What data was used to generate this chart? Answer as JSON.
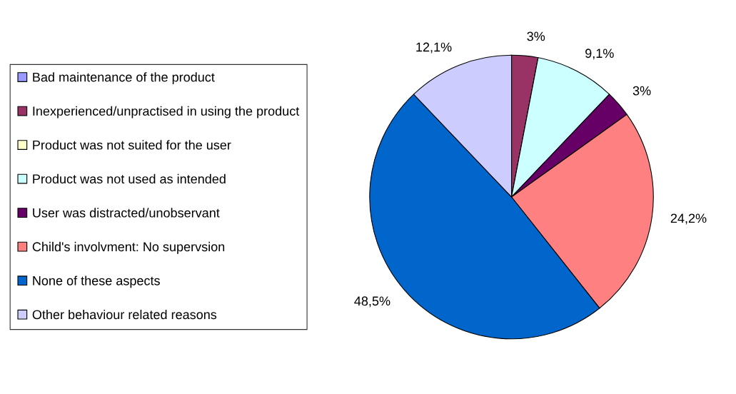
{
  "chart_data": {
    "type": "pie",
    "categories": [
      "Bad maintenance of the product",
      "Inexperienced/unpractised in using the product",
      "Product was not suited for the user",
      "Product was not used as intended",
      "User was distracted/unobservant",
      "Child's involvment: No supervsion",
      "None of these aspects",
      "Other behaviour related reasons"
    ],
    "values": [
      0,
      3,
      0,
      9.1,
      3,
      24.2,
      48.5,
      12.1
    ],
    "value_labels": [
      null,
      "3%",
      null,
      "9,1%",
      "3%",
      "24,2%",
      "48,5%",
      "12,1%"
    ],
    "colors": [
      "#9999ff",
      "#993366",
      "#ffffcc",
      "#ccffff",
      "#660066",
      "#ff8080",
      "#0066cc",
      "#ccccff"
    ],
    "legend": "left"
  }
}
